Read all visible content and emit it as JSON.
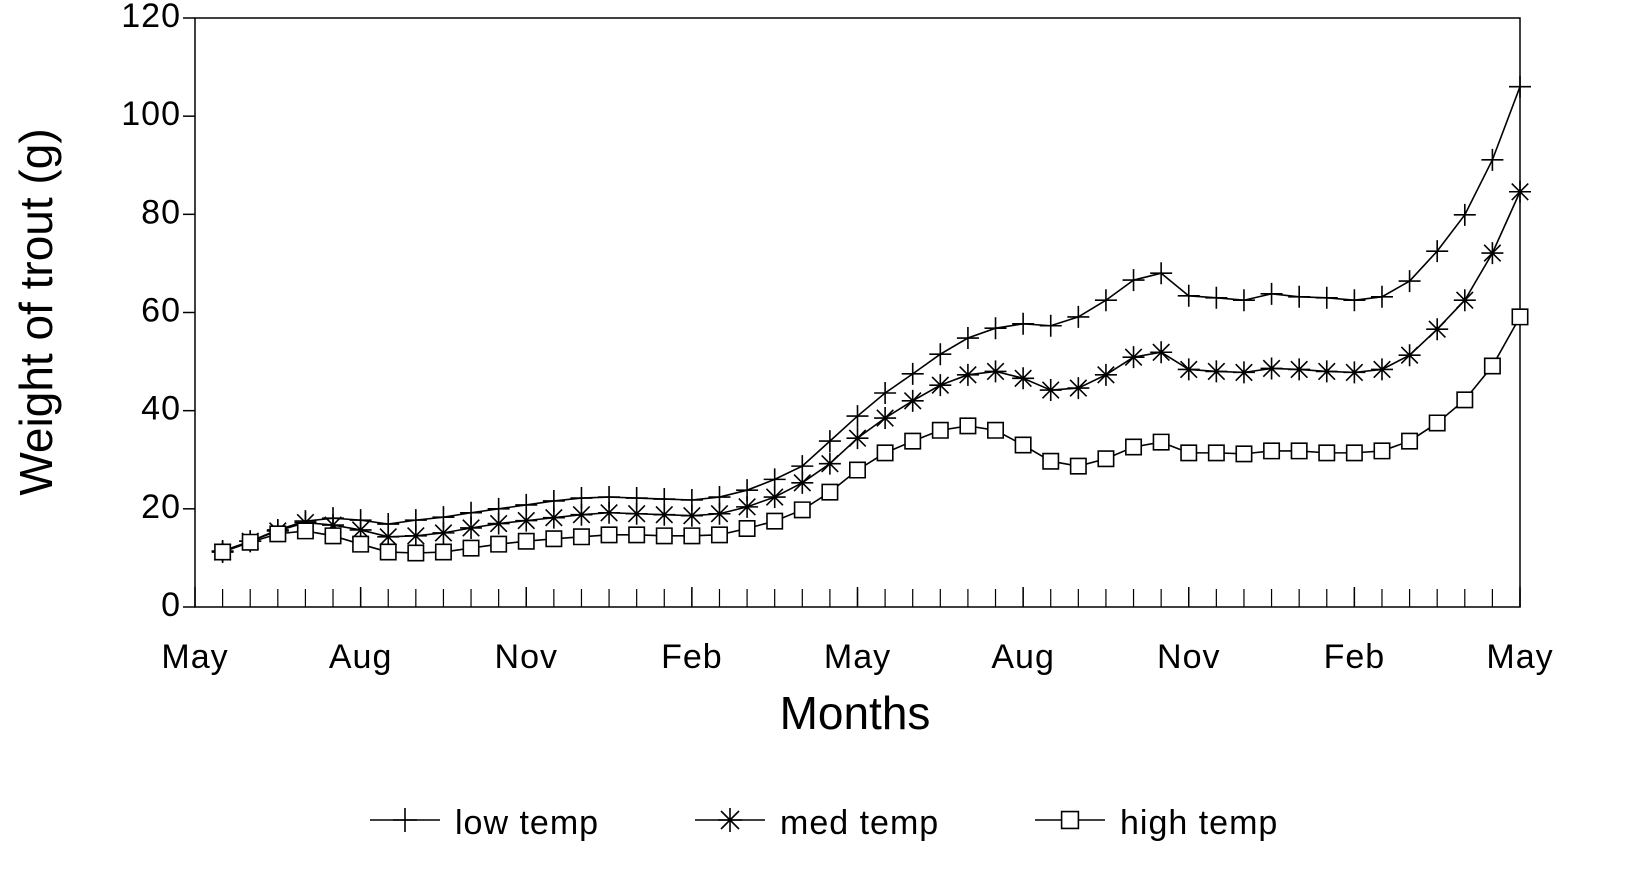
{
  "chart_data": {
    "type": "line",
    "xlabel": "Months",
    "ylabel": "Weight of trout (g)",
    "x": [
      0.5,
      1,
      1.5,
      2,
      2.5,
      3,
      3.5,
      4,
      4.5,
      5,
      5.5,
      6,
      6.5,
      7,
      7.5,
      8,
      8.5,
      9,
      9.5,
      10,
      10.5,
      11,
      11.5,
      12,
      12.5,
      13,
      13.5,
      14,
      14.5,
      15,
      15.5,
      16,
      16.5,
      17,
      17.5,
      18,
      18.5,
      19,
      19.5,
      20,
      20.5,
      21,
      21.5,
      22,
      22.5,
      23,
      23.5,
      24
    ],
    "xlim": [
      0,
      24
    ],
    "xticks": [
      {
        "value": 0,
        "label": "May"
      },
      {
        "value": 3,
        "label": "Aug"
      },
      {
        "value": 6,
        "label": "Nov"
      },
      {
        "value": 9,
        "label": "Feb"
      },
      {
        "value": 12,
        "label": "May"
      },
      {
        "value": 15,
        "label": "Aug"
      },
      {
        "value": 18,
        "label": "Nov"
      },
      {
        "value": 21,
        "label": "Feb"
      },
      {
        "value": 24,
        "label": "May"
      }
    ],
    "ylim": [
      0,
      120
    ],
    "yticks": [
      0,
      20,
      40,
      60,
      80,
      100,
      120
    ],
    "legend": "bottom",
    "series": [
      {
        "name": "low temp",
        "color": "#000000",
        "marker": "plus",
        "values": [
          11.4,
          13.4,
          15.7,
          17.5,
          18.1,
          17.7,
          16.9,
          17.7,
          18.3,
          19.2,
          20,
          20.8,
          21.6,
          22.2,
          22.4,
          22.2,
          22,
          21.8,
          22.4,
          23.8,
          26,
          28.7,
          33.8,
          38.9,
          43.6,
          47.5,
          51.5,
          54.8,
          56.8,
          57.7,
          57.3,
          59.1,
          62.5,
          66.6,
          68,
          63.4,
          63,
          62.5,
          63.8,
          63.2,
          63,
          62.5,
          63.2,
          66.4,
          72.5,
          79.9,
          91.1,
          106
        ]
      },
      {
        "name": "med temp",
        "color": "#000000",
        "marker": "asterisk",
        "values": [
          11.2,
          13.4,
          15.5,
          17.2,
          16.7,
          15.7,
          14.3,
          14.5,
          15.1,
          16.1,
          17,
          17.6,
          18.2,
          18.8,
          19.2,
          19,
          18.8,
          18.6,
          19,
          20.4,
          22.4,
          25.3,
          29.2,
          34.4,
          38.5,
          42,
          45.2,
          47.3,
          48,
          46.6,
          44.2,
          44.6,
          47.3,
          50.9,
          51.9,
          48.4,
          48,
          47.8,
          48.6,
          48.4,
          48,
          47.8,
          48.4,
          51.3,
          56.6,
          62.5,
          72.1,
          84.6
        ]
      },
      {
        "name": "high temp",
        "color": "#000000",
        "marker": "square",
        "values": [
          11.2,
          13.2,
          14.9,
          15.5,
          14.5,
          12.8,
          11.2,
          11,
          11.2,
          12,
          12.8,
          13.4,
          13.9,
          14.3,
          14.7,
          14.7,
          14.5,
          14.5,
          14.7,
          16,
          17.5,
          19.8,
          23.4,
          27.9,
          31.4,
          33.8,
          36,
          36.9,
          36,
          33,
          29.7,
          28.7,
          30.2,
          32.6,
          33.6,
          31.4,
          31.4,
          31.2,
          31.8,
          31.8,
          31.4,
          31.4,
          31.8,
          33.8,
          37.5,
          42.2,
          49.1,
          59.1
        ]
      }
    ]
  }
}
